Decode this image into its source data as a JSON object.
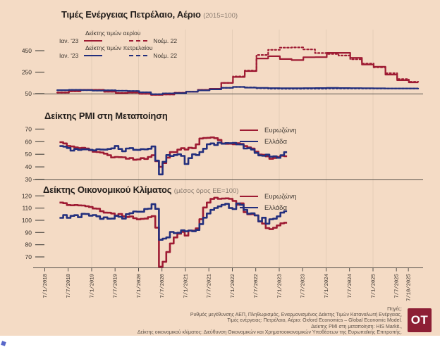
{
  "colors": {
    "background": "#f4dbc5",
    "eurozone_red": "#9e1b33",
    "greece_blue": "#232f7d",
    "grid": "#e4cdb7",
    "axis": "#55504a",
    "tick_text": "#332d28",
    "logo_bg": "#8d1f35"
  },
  "panels": {
    "energy": {
      "title": "Τιμές Ενέργειας Πετρέλαιο, Αέριο",
      "subtitle": "(2015=100)",
      "legend": {
        "gas_label": "Δείκτης τιμών αερίου",
        "oil_label": "Δείκτης τιμών πετρελαίου",
        "solid_label": "Ιαν. '23",
        "dashed_label": "Νοέμ. 22"
      }
    },
    "pmi": {
      "title": "Δείκτης PMI στη Μεταποίηση"
    },
    "esi": {
      "title": "Δείκτης Οικονομικού Κλίματος",
      "subtitle": "(μέσος όρος ΕΕ=100)"
    }
  },
  "series_labels": {
    "eurozone": "Ευρωζώνη",
    "greece": "Ελλάδα"
  },
  "x_axis": {
    "tick_labels": [
      "7/1/2018",
      "7/7/2018",
      "7/1/2019",
      "7/7/2019",
      "7/1/2020",
      "7/7/2020",
      "7/1/2021",
      "7/7/2021",
      "7/1/2022",
      "7/7/2022",
      "7/1/2023",
      "7/7/2023",
      "7/1/2024",
      "7/7/2024",
      "7/1/2025",
      "7/7/2025",
      "7/10/2025"
    ]
  },
  "footer": {
    "lines": [
      "Πηγές:",
      "Ρυθμός μεγέθυνσης ΑΕΠ, Πληθωρισμός, Εναρμονισμένος Δείκτης Τιμών Καταναλωτή Ενέργειας,",
      "Τιμές ενέργειας: Πετρέλαιο, Αέριο: Oxford Economics – Global Economic Model.",
      "Δείκτης PMI στη μεταποίηση: HIS Markit.,",
      "Δείκτης οικονομικού κλίματος: Διεύθυνση Οικονομικών και Χρηματοοικονομικών Υποθέσεων της Ευρωπαϊκής Επιτροπής."
    ]
  },
  "logo": {
    "text": "OT"
  },
  "chart_data": [
    {
      "type": "line",
      "title": "Τιμές Ενέργειας Πετρέλαιο, Αέριο",
      "subtitle": "(2015=100)",
      "frequency": "quarterly",
      "start": "2018-Q2",
      "end": "2025-Q4",
      "interpolation": "step-after",
      "ylim": [
        45,
        500
      ],
      "yticks": [
        450,
        250,
        50
      ],
      "legend_position": "top-left",
      "series": [
        {
          "name": "Δείκτης τιμών αερίου — Ιαν. '23",
          "color": "#9e1b33",
          "style": "solid",
          "values": [
            60,
            72,
            85,
            85,
            68,
            55,
            60,
            48,
            38,
            42,
            58,
            68,
            85,
            95,
            150,
            205,
            260,
            377,
            398,
            372,
            362,
            389,
            390,
            430,
            430,
            383,
            321,
            300,
            227,
            175,
            155
          ]
        },
        {
          "name": "Δείκτης τιμών αερίου — Νοέμ. 22",
          "color": "#9e1b33",
          "style": "dashed",
          "values": [
            60,
            72,
            85,
            85,
            68,
            55,
            60,
            48,
            38,
            42,
            58,
            68,
            85,
            95,
            150,
            210,
            265,
            410,
            458,
            478,
            480,
            462,
            428,
            420,
            405,
            370,
            330,
            295,
            240,
            185,
            160
          ]
        },
        {
          "name": "Δείκτης τιμών πετρελαίου — Ιαν. '23",
          "color": "#232f7d",
          "style": "solid",
          "values": [
            82,
            85,
            83,
            78,
            80,
            76,
            74,
            62,
            45,
            52,
            54,
            68,
            80,
            90,
            104,
            112,
            106,
            103,
            101,
            100,
            100,
            101,
            102,
            103,
            102,
            101,
            100,
            99,
            98,
            98,
            98
          ]
        },
        {
          "name": "Δείκτης τιμών πετρελαίου — Νοέμ. 22",
          "color": "#232f7d",
          "style": "dashed",
          "values": [
            82,
            85,
            83,
            78,
            80,
            76,
            74,
            62,
            45,
            52,
            54,
            68,
            80,
            90,
            104,
            112,
            108,
            100,
            96,
            95,
            95,
            96,
            96,
            97,
            97,
            97,
            97,
            97,
            97,
            97,
            97
          ]
        }
      ]
    },
    {
      "type": "line",
      "title": "Δείκτης PMI στη Μεταποίηση",
      "frequency": "monthly",
      "start": "2018-01",
      "end": "2023-02",
      "interpolation": "step-after",
      "ylim": [
        30,
        73
      ],
      "yticks": [
        70,
        60,
        50,
        40,
        30
      ],
      "legend_position": "right",
      "series": [
        {
          "name": "Ευρωζώνη",
          "color": "#9e1b33",
          "style": "solid",
          "values": [
            59.6,
            58.6,
            56.6,
            56.2,
            55.5,
            54.9,
            55.1,
            54.6,
            53.2,
            52.0,
            51.8,
            51.4,
            50.5,
            49.3,
            47.5,
            47.9,
            47.7,
            47.6,
            46.5,
            47.0,
            45.7,
            45.9,
            46.9,
            46.3,
            47.9,
            49.2,
            44.5,
            40.0,
            43.0,
            47.4,
            51.8,
            51.7,
            53.7,
            54.8,
            53.8,
            55.2,
            54.8,
            57.9,
            62.5,
            62.9,
            63.1,
            63.4,
            62.8,
            61.4,
            58.6,
            58.3,
            58.4,
            58.0,
            58.7,
            58.2,
            56.5,
            55.5,
            54.6,
            52.1,
            49.8,
            49.6,
            48.4,
            46.4,
            47.1,
            47.8,
            48.8,
            48.5
          ]
        },
        {
          "name": "Ελλάδα",
          "color": "#232f7d",
          "style": "solid",
          "values": [
            56.5,
            56.1,
            55.0,
            52.9,
            54.2,
            53.5,
            53.9,
            53.9,
            53.6,
            53.1,
            54.0,
            53.8,
            53.7,
            54.2,
            54.7,
            56.6,
            54.2,
            52.4,
            54.6,
            54.9,
            53.6,
            53.5,
            54.1,
            53.9,
            54.4,
            56.2,
            45.0,
            34.0,
            44.0,
            49.4,
            48.6,
            49.4,
            50.0,
            48.7,
            42.3,
            46.9,
            50.0,
            49.4,
            51.8,
            54.4,
            58.0,
            58.6,
            57.4,
            59.3,
            58.4,
            58.9,
            58.8,
            59.0,
            57.9,
            57.8,
            54.6,
            54.8,
            53.8,
            51.1,
            49.1,
            48.8,
            49.7,
            48.1,
            48.4,
            47.2,
            49.2,
            51.7
          ]
        }
      ]
    },
    {
      "type": "line",
      "title": "Δείκτης Οικονομικού Κλίματος",
      "subtitle": "(μέσος όρος ΕΕ=100)",
      "frequency": "monthly",
      "start": "2018-01",
      "end": "2023-02",
      "interpolation": "step-after",
      "ylim": [
        62,
        125
      ],
      "yticks": [
        120,
        110,
        100,
        90,
        80,
        70
      ],
      "legend_position": "right",
      "series": [
        {
          "name": "Ευρωζώνη",
          "color": "#9e1b33",
          "style": "solid",
          "values": [
            114.5,
            114.0,
            112.5,
            112.3,
            112.5,
            112.2,
            112.1,
            111.5,
            110.9,
            109.7,
            109.5,
            107.4,
            106.3,
            106.2,
            105.6,
            103.9,
            105.2,
            103.3,
            102.7,
            103.1,
            101.7,
            100.8,
            101.2,
            101.4,
            102.6,
            103.4,
            94.0,
            62.0,
            66.0,
            74.0,
            81.0,
            86.0,
            89.0,
            90.5,
            87.5,
            91.5,
            91.5,
            93.4,
            100.9,
            110.5,
            114.5,
            117.5,
            118.5,
            117.6,
            117.8,
            118.0,
            117.6,
            115.9,
            112.8,
            113.9,
            106.7,
            104.9,
            105.0,
            104.0,
            99.0,
            97.3,
            93.6,
            92.7,
            93.9,
            95.8,
            97.5,
            98.0
          ]
        },
        {
          "name": "Ελλάδα",
          "color": "#232f7d",
          "style": "solid",
          "values": [
            102.0,
            104.3,
            102.0,
            103.6,
            104.2,
            102.5,
            105.3,
            105.2,
            103.8,
            104.3,
            103.3,
            101.2,
            102.4,
            101.3,
            101.4,
            103.6,
            102.9,
            101.4,
            105.0,
            105.8,
            107.2,
            107.0,
            107.0,
            109.3,
            109.5,
            113.2,
            109.4,
            84.0,
            85.0,
            86.0,
            90.5,
            89.5,
            89.8,
            91.8,
            91.0,
            91.6,
            91.0,
            92.1,
            96.9,
            102.1,
            105.6,
            108.5,
            110.1,
            111.4,
            112.7,
            113.5,
            110.0,
            109.2,
            113.8,
            112.7,
            108.5,
            105.4,
            105.7,
            104.0,
            99.2,
            102.1,
            97.2,
            100.8,
            101.3,
            103.2,
            106.3,
            107.5
          ]
        }
      ]
    }
  ]
}
